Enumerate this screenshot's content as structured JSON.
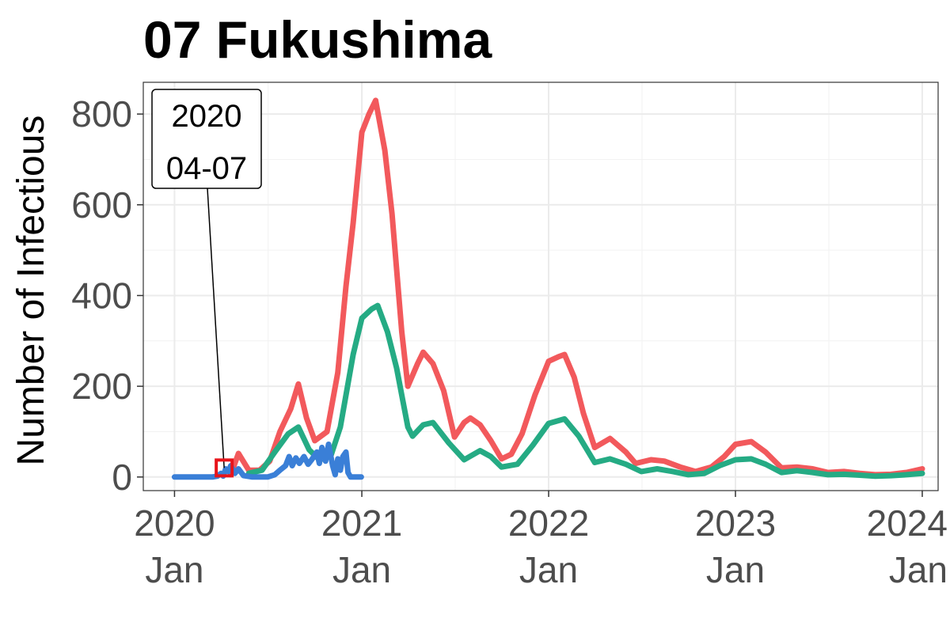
{
  "chart_data": {
    "type": "line",
    "title": "07 Fukushima",
    "xlabel": "",
    "ylabel": "Number of Infectious",
    "xlim": [
      "2019-11-01",
      "2024-02-01"
    ],
    "ylim": [
      -30,
      870
    ],
    "x_ticks": [
      {
        "date": "2020-01-01",
        "year": "2020",
        "month": "Jan"
      },
      {
        "date": "2021-01-01",
        "year": "2021",
        "month": "Jan"
      },
      {
        "date": "2022-01-01",
        "year": "2022",
        "month": "Jan"
      },
      {
        "date": "2023-01-01",
        "year": "2023",
        "month": "Jan"
      },
      {
        "date": "2024-01-01",
        "year": "2024",
        "month": "Jan"
      }
    ],
    "y_ticks": [
      0,
      200,
      400,
      600,
      800
    ],
    "grid": true,
    "legend": "none",
    "annotation": {
      "lines": [
        "2020",
        "04-07"
      ],
      "date": "2020-04-07",
      "value": 20,
      "box_color": "#e8141b"
    },
    "series": [
      {
        "color": "#f2595c",
        "points": [
          [
            "2020-04-20",
            5
          ],
          [
            "2020-05-05",
            52
          ],
          [
            "2020-05-25",
            15
          ],
          [
            "2020-06-15",
            15
          ],
          [
            "2020-07-05",
            35
          ],
          [
            "2020-07-25",
            100
          ],
          [
            "2020-08-15",
            150
          ],
          [
            "2020-08-30",
            205
          ],
          [
            "2020-09-15",
            130
          ],
          [
            "2020-10-01",
            80
          ],
          [
            "2020-10-25",
            100
          ],
          [
            "2020-11-15",
            230
          ],
          [
            "2020-12-01",
            420
          ],
          [
            "2020-12-15",
            560
          ],
          [
            "2021-01-01",
            760
          ],
          [
            "2021-01-15",
            800
          ],
          [
            "2021-01-28",
            830
          ],
          [
            "2021-02-15",
            720
          ],
          [
            "2021-03-01",
            580
          ],
          [
            "2021-03-20",
            320
          ],
          [
            "2021-04-01",
            200
          ],
          [
            "2021-04-20",
            250
          ],
          [
            "2021-05-01",
            275
          ],
          [
            "2021-05-20",
            250
          ],
          [
            "2021-06-10",
            190
          ],
          [
            "2021-07-01",
            88
          ],
          [
            "2021-07-20",
            120
          ],
          [
            "2021-08-01",
            130
          ],
          [
            "2021-08-20",
            115
          ],
          [
            "2021-09-10",
            80
          ],
          [
            "2021-10-01",
            40
          ],
          [
            "2021-10-20",
            50
          ],
          [
            "2021-11-10",
            95
          ],
          [
            "2021-12-05",
            180
          ],
          [
            "2022-01-01",
            255
          ],
          [
            "2022-01-20",
            265
          ],
          [
            "2022-02-01",
            270
          ],
          [
            "2022-02-20",
            220
          ],
          [
            "2022-03-10",
            140
          ],
          [
            "2022-04-01",
            65
          ],
          [
            "2022-05-01",
            85
          ],
          [
            "2022-06-01",
            55
          ],
          [
            "2022-06-20",
            30
          ],
          [
            "2022-07-20",
            38
          ],
          [
            "2022-08-15",
            35
          ],
          [
            "2022-09-15",
            22
          ],
          [
            "2022-10-15",
            12
          ],
          [
            "2022-11-15",
            22
          ],
          [
            "2022-12-10",
            45
          ],
          [
            "2023-01-01",
            72
          ],
          [
            "2023-02-01",
            78
          ],
          [
            "2023-03-01",
            55
          ],
          [
            "2023-04-01",
            20
          ],
          [
            "2023-05-01",
            22
          ],
          [
            "2023-06-01",
            18
          ],
          [
            "2023-07-01",
            10
          ],
          [
            "2023-08-01",
            12
          ],
          [
            "2023-09-01",
            8
          ],
          [
            "2023-10-01",
            5
          ],
          [
            "2023-11-01",
            6
          ],
          [
            "2023-12-01",
            10
          ],
          [
            "2024-01-01",
            18
          ]
        ]
      },
      {
        "color": "#25ab84",
        "points": [
          [
            "2020-05-25",
            8
          ],
          [
            "2020-06-20",
            15
          ],
          [
            "2020-07-15",
            55
          ],
          [
            "2020-08-10",
            95
          ],
          [
            "2020-08-30",
            110
          ],
          [
            "2020-09-20",
            60
          ],
          [
            "2020-10-10",
            38
          ],
          [
            "2020-11-01",
            45
          ],
          [
            "2020-11-20",
            110
          ],
          [
            "2020-12-15",
            270
          ],
          [
            "2021-01-01",
            350
          ],
          [
            "2021-01-20",
            370
          ],
          [
            "2021-02-01",
            378
          ],
          [
            "2021-02-20",
            320
          ],
          [
            "2021-03-10",
            240
          ],
          [
            "2021-04-01",
            110
          ],
          [
            "2021-04-10",
            90
          ],
          [
            "2021-05-01",
            115
          ],
          [
            "2021-05-20",
            120
          ],
          [
            "2021-06-20",
            75
          ],
          [
            "2021-07-20",
            38
          ],
          [
            "2021-08-20",
            58
          ],
          [
            "2021-09-10",
            45
          ],
          [
            "2021-10-01",
            22
          ],
          [
            "2021-11-01",
            28
          ],
          [
            "2021-12-01",
            70
          ],
          [
            "2022-01-01",
            118
          ],
          [
            "2022-02-01",
            128
          ],
          [
            "2022-03-01",
            90
          ],
          [
            "2022-04-01",
            32
          ],
          [
            "2022-05-01",
            40
          ],
          [
            "2022-06-01",
            28
          ],
          [
            "2022-07-01",
            12
          ],
          [
            "2022-08-01",
            18
          ],
          [
            "2022-09-01",
            12
          ],
          [
            "2022-10-01",
            5
          ],
          [
            "2022-11-01",
            8
          ],
          [
            "2022-12-01",
            25
          ],
          [
            "2023-01-01",
            38
          ],
          [
            "2023-02-01",
            40
          ],
          [
            "2023-03-01",
            28
          ],
          [
            "2023-04-01",
            10
          ],
          [
            "2023-05-01",
            14
          ],
          [
            "2023-06-01",
            10
          ],
          [
            "2023-07-01",
            5
          ],
          [
            "2023-08-01",
            6
          ],
          [
            "2023-09-01",
            4
          ],
          [
            "2023-10-01",
            2
          ],
          [
            "2023-11-01",
            3
          ],
          [
            "2023-12-01",
            5
          ],
          [
            "2024-01-01",
            8
          ]
        ]
      },
      {
        "color": "#3a7fd7",
        "points": [
          [
            "2020-01-01",
            0
          ],
          [
            "2020-03-15",
            0
          ],
          [
            "2020-03-25",
            2
          ],
          [
            "2020-04-01",
            8
          ],
          [
            "2020-04-05",
            2
          ],
          [
            "2020-04-10",
            18
          ],
          [
            "2020-04-15",
            12
          ],
          [
            "2020-04-20",
            25
          ],
          [
            "2020-04-28",
            8
          ],
          [
            "2020-05-05",
            18
          ],
          [
            "2020-05-15",
            3
          ],
          [
            "2020-06-01",
            0
          ],
          [
            "2020-07-01",
            0
          ],
          [
            "2020-07-15",
            5
          ],
          [
            "2020-07-25",
            15
          ],
          [
            "2020-08-05",
            25
          ],
          [
            "2020-08-12",
            45
          ],
          [
            "2020-08-18",
            25
          ],
          [
            "2020-08-25",
            42
          ],
          [
            "2020-09-01",
            30
          ],
          [
            "2020-09-10",
            45
          ],
          [
            "2020-09-18",
            28
          ],
          [
            "2020-09-25",
            38
          ],
          [
            "2020-10-05",
            55
          ],
          [
            "2020-10-10",
            30
          ],
          [
            "2020-10-15",
            65
          ],
          [
            "2020-10-22",
            35
          ],
          [
            "2020-10-28",
            72
          ],
          [
            "2020-11-05",
            25
          ],
          [
            "2020-11-10",
            5
          ],
          [
            "2020-11-15",
            40
          ],
          [
            "2020-11-20",
            15
          ],
          [
            "2020-11-25",
            45
          ],
          [
            "2020-12-01",
            55
          ],
          [
            "2020-12-05",
            10
          ],
          [
            "2020-12-10",
            0
          ],
          [
            "2020-12-31",
            0
          ]
        ]
      }
    ]
  }
}
